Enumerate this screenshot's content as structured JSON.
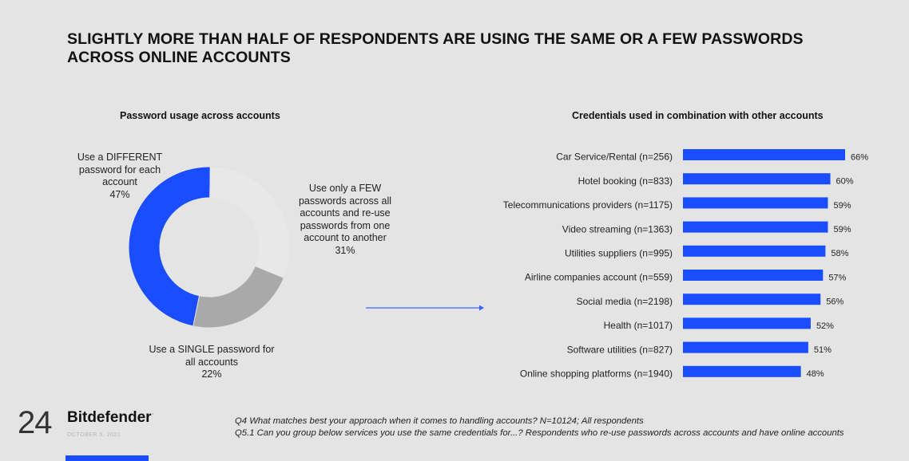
{
  "title": "SLIGHTLY MORE THAN HALF OF RESPONDENTS ARE USING THE SAME OR A FEW PASSWORDS ACROSS ONLINE ACCOUNTS",
  "colors": {
    "accent": "#1a4dff",
    "few": "#e8e8e8",
    "single": "#a9a9a9",
    "background": "#e4e4e4"
  },
  "chart_data": [
    {
      "type": "pie",
      "variant": "donut",
      "title": "Password usage across accounts",
      "slices": [
        {
          "label": "Use a DIFFERENT password for each account",
          "value": 47,
          "label_lines": [
            "Use a DIFFERENT",
            "password for each",
            "account",
            "47%"
          ],
          "color": "#1a4dff"
        },
        {
          "label": "Use only a FEW passwords across all accounts and re-use passwords from one account to another",
          "value": 31,
          "label_lines": [
            "Use only a FEW",
            "passwords across all",
            "accounts and re-use",
            "passwords from one",
            "account to another",
            "31%"
          ],
          "color": "#e8e8e8"
        },
        {
          "label": "Use a SINGLE password for all accounts",
          "value": 22,
          "label_lines": [
            "Use a SINGLE password for",
            "all accounts",
            "22%"
          ],
          "color": "#a9a9a9"
        }
      ]
    },
    {
      "type": "bar",
      "orientation": "horizontal",
      "title": "Credentials used in combination with other accounts",
      "categories": [
        "Car Service/Rental (n=256)",
        "Hotel booking (n=833)",
        "Telecommunications providers (n=1175)",
        "Video streaming (n=1363)",
        "Utilities suppliers (n=995)",
        "Airline companies account (n=559)",
        "Social media (n=2198)",
        "Health (n=1017)",
        "Software utilities (n=827)",
        "Online shopping platforms (n=1940)"
      ],
      "values": [
        66,
        60,
        59,
        59,
        58,
        57,
        56,
        52,
        51,
        48
      ],
      "value_labels": [
        "66%",
        "60%",
        "59%",
        "59%",
        "58%",
        "57%",
        "56%",
        "52%",
        "51%",
        "48%"
      ],
      "xlim": [
        0,
        66
      ],
      "grid": false,
      "color": "#1a4dff"
    }
  ],
  "footer": {
    "page_number": "24",
    "brand": "Bitdefender",
    "brand_mark": "·",
    "date": "OCTOBER 5, 2021",
    "notes": [
      "Q4 What matches best your approach when it comes to handling accounts? N=10124; All respondents",
      "Q5.1 Can you group below services you use the same credentials for...? Respondents who re-use passwords across accounts and have online accounts"
    ]
  }
}
